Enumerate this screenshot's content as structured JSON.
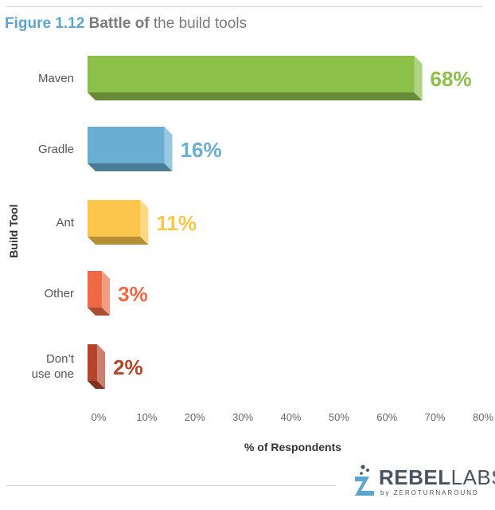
{
  "figure": {
    "number": "Figure 1.12",
    "title_bold": "Battle of",
    "title_rest": "the build tools"
  },
  "chart_data": {
    "type": "bar",
    "orientation": "horizontal",
    "categories": [
      "Maven",
      "Gradle",
      "Ant",
      "Other",
      "Don’t use one"
    ],
    "values": [
      68,
      16,
      11,
      3,
      2
    ],
    "value_labels": [
      "68%",
      "16%",
      "11%",
      "3%",
      "2%"
    ],
    "colors": [
      "#8dc04a",
      "#6aaed3",
      "#fcc54b",
      "#ee6a47",
      "#b5442c"
    ],
    "title": "Battle of the build tools",
    "xlabel": "% of Respondents",
    "ylabel": "Build Tool",
    "xlim": [
      0,
      80
    ],
    "xticks": [
      "0%",
      "10%",
      "20%",
      "30%",
      "40%",
      "50%",
      "60%",
      "70%",
      "80%"
    ],
    "grid": false,
    "legend": "none"
  },
  "logo": {
    "name_part1": "REBEL",
    "name_part2": "LABS",
    "by": "by",
    "sub": "ZEROTURNAROUND",
    "icon": "flask-icon"
  }
}
